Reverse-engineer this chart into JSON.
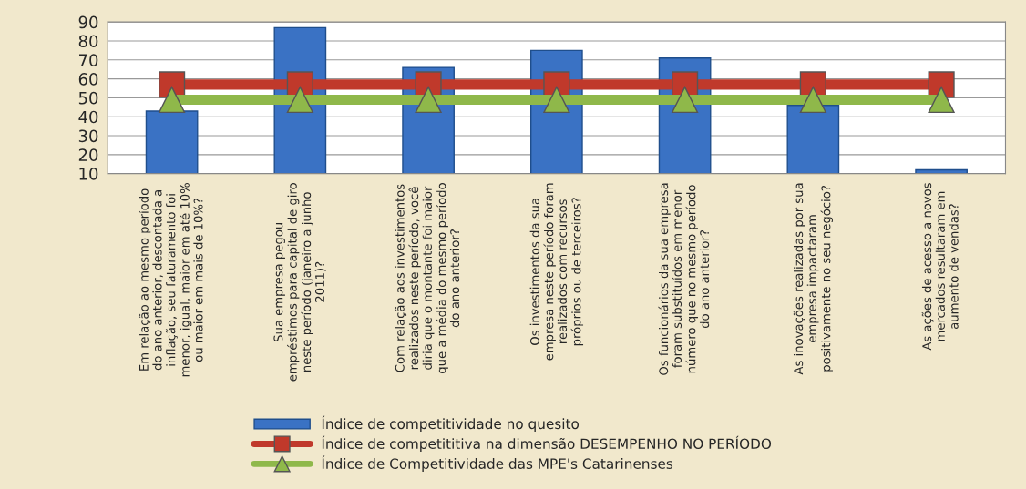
{
  "chart_data": {
    "type": "bar",
    "categories": [
      "Em relação ao mesmo período\ndo ano anterior, descontada a\ninflação, seu faturamento foi\nmenor, igual, maior em até 10%\nou maior em mais de 10%?",
      "Sua empresa pegou\nempréstimos para capital de giro\nneste período (janeiro a junho\n2011)?",
      "Com relação aos investimentos\nrealizados neste período, você\ndiria que o montante foi maior\nque a média do mesmo período\ndo ano anterior?",
      "Os investimentos da sua\nempresa neste período foram\nrealizados com recursos\npróprios ou de terceiros?",
      "Os funcionários da sua empresa\nforam substituídos em menor\nnúmero que no mesmo período\ndo ano anterior?",
      "As inovações realizadas por sua\nempresa impactaram\npositivamente no seu negócio?",
      "As ações de acesso a novos\nmercados resultaram em\naumento de vendas?"
    ],
    "series": [
      {
        "name": "Índice de competitividade no quesito",
        "color": "#3a72c4",
        "values": [
          43,
          87,
          66,
          75,
          71,
          46,
          12
        ]
      },
      {
        "name": "Índice de competititiva na dimensão DESEMPENHO NO PERÍODO",
        "type": "line",
        "color": "#c0392b",
        "marker": "square",
        "values": [
          57,
          57,
          57,
          57,
          57,
          57,
          57
        ]
      },
      {
        "name": "Índice de Competitividade das MPE's Catarinenses",
        "type": "line",
        "color": "#8fb84a",
        "marker": "triangle",
        "values": [
          49,
          49,
          49,
          49,
          49,
          49,
          49
        ]
      }
    ],
    "ylim": [
      10,
      90
    ],
    "yticks": [
      10,
      20,
      30,
      40,
      50,
      60,
      70,
      80,
      90
    ],
    "grid": "y",
    "legend": "bottom"
  }
}
